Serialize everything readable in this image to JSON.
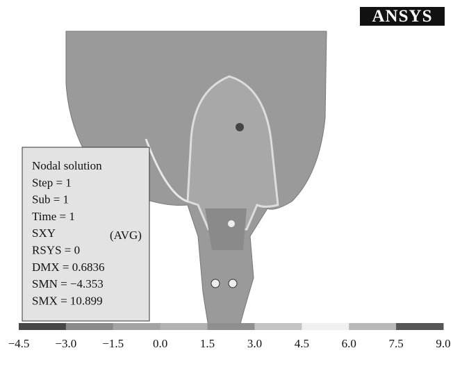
{
  "logo": "ANSYS",
  "info": {
    "lines": [
      "Nodal solution",
      "Step = 1",
      "Sub = 1",
      "Time = 1",
      "SXY",
      "RSYS = 0",
      "DMX = 0.6836",
      "SMN = −4.353",
      "SMX = 10.899"
    ],
    "avg": "(AVG)"
  },
  "legend": {
    "labels": [
      "−4.5",
      "−3.0",
      "−1.5",
      "0.0",
      "1.5",
      "3.0",
      "4.5",
      "6.0",
      "7.5",
      "9.0"
    ],
    "colors": [
      "#474747",
      "#8a8a8a",
      "#a3a3a3",
      "#b3b3b3",
      "#8f8f8f",
      "#c4c4c4",
      "#f0f0f0",
      "#b8b8b8",
      "#565656"
    ]
  }
}
